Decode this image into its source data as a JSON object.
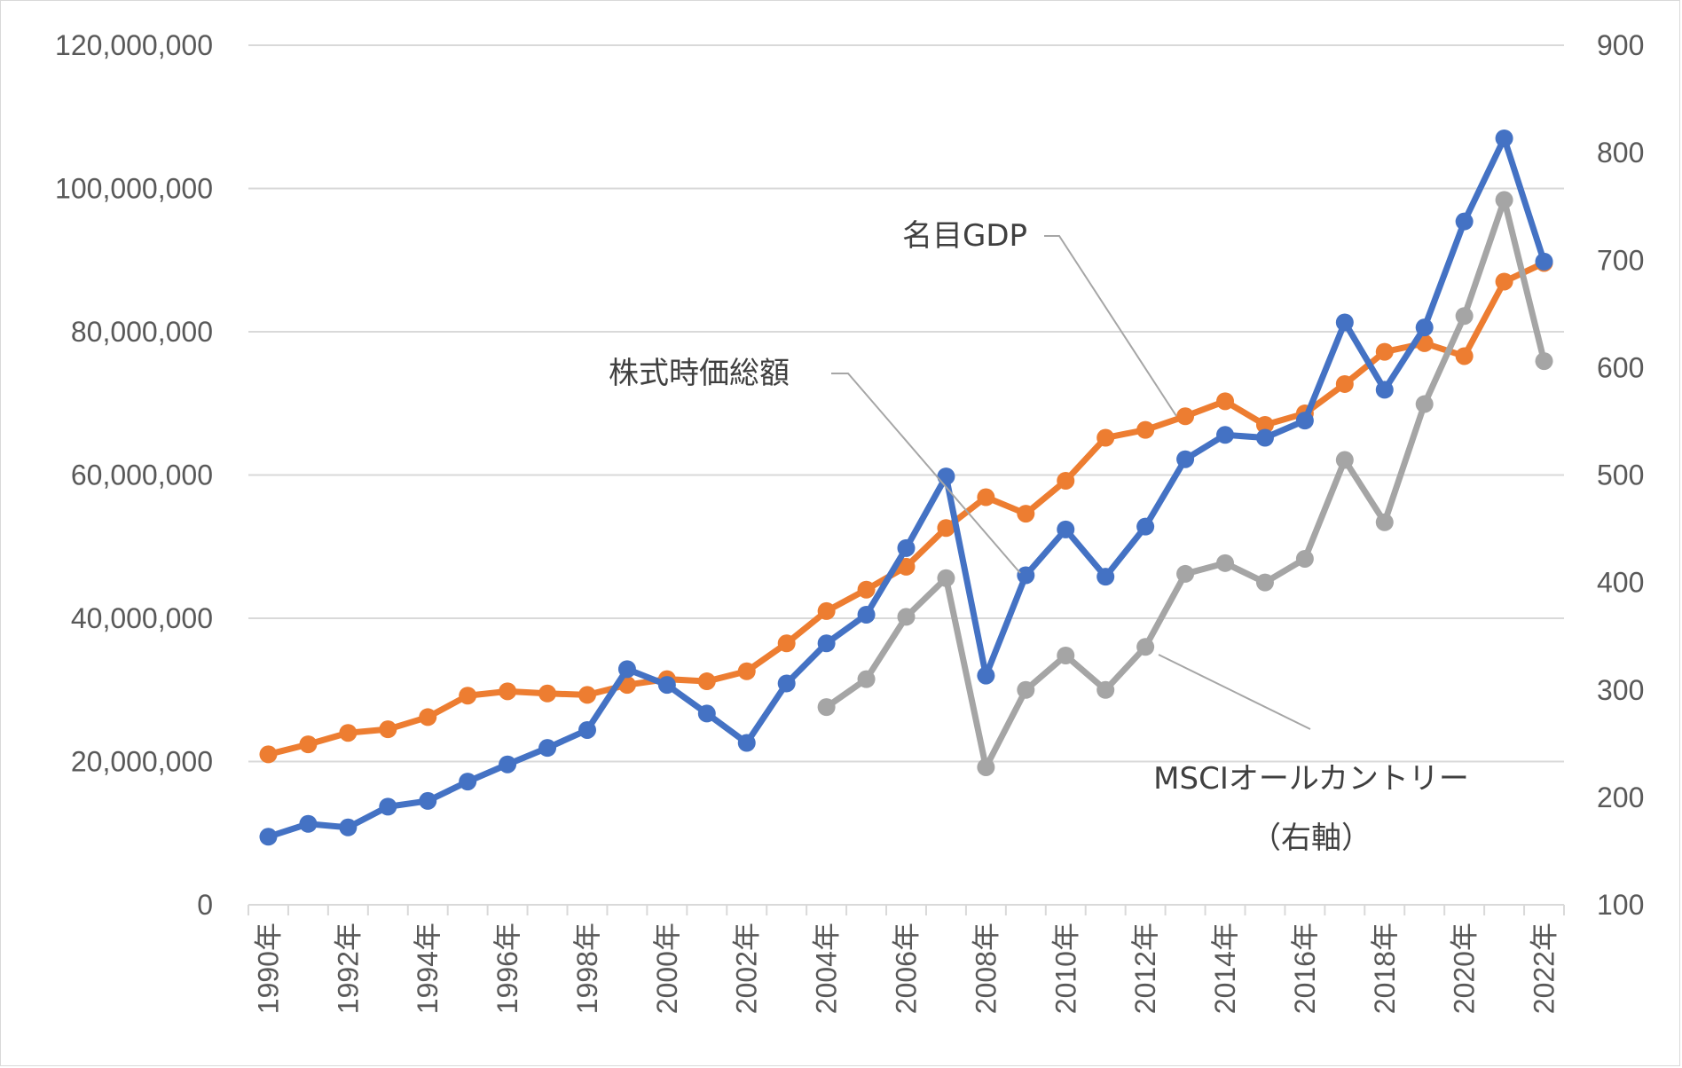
{
  "chart_data": {
    "type": "line",
    "x": [
      "1990年",
      "1991年",
      "1992年",
      "1993年",
      "1994年",
      "1995年",
      "1996年",
      "1997年",
      "1998年",
      "1999年",
      "2000年",
      "2001年",
      "2002年",
      "2003年",
      "2004年",
      "2005年",
      "2006年",
      "2007年",
      "2008年",
      "2009年",
      "2010年",
      "2011年",
      "2012年",
      "2013年",
      "2014年",
      "2015年",
      "2016年",
      "2017年",
      "2018年",
      "2019年",
      "2020年",
      "2021年",
      "2022年"
    ],
    "x_tick_labels": [
      "1990年",
      "1992年",
      "1994年",
      "1996年",
      "1998年",
      "2000年",
      "2002年",
      "2004年",
      "2006年",
      "2008年",
      "2010年",
      "2012年",
      "2014年",
      "2016年",
      "2018年",
      "2020年",
      "2022年"
    ],
    "y_left": {
      "ylim": [
        0,
        120000000
      ],
      "ticks": [
        "0",
        "20,000,000",
        "40,000,000",
        "60,000,000",
        "80,000,000",
        "100,000,000",
        "120,000,000"
      ]
    },
    "y_right": {
      "ylim": [
        100,
        900
      ],
      "ticks": [
        "100",
        "200",
        "300",
        "400",
        "500",
        "600",
        "700",
        "800",
        "900"
      ]
    },
    "grid": true,
    "series": [
      {
        "name": "株式時価総額",
        "axis": "left",
        "color": "#4472c4",
        "values": [
          9500000,
          11300000,
          10800000,
          13700000,
          14500000,
          17200000,
          19600000,
          21900000,
          24400000,
          32900000,
          30700000,
          26700000,
          22600000,
          30900000,
          36500000,
          40500000,
          49800000,
          59800000,
          32000000,
          46000000,
          52400000,
          45800000,
          52800000,
          62200000,
          65600000,
          65200000,
          67600000,
          81300000,
          71900000,
          80600000,
          95400000,
          107000000,
          89800000
        ]
      },
      {
        "name": "名目GDP",
        "axis": "left",
        "color": "#ed7d31",
        "values": [
          21000000,
          22400000,
          24000000,
          24500000,
          26200000,
          29200000,
          29800000,
          29500000,
          29300000,
          30700000,
          31500000,
          31200000,
          32600000,
          36500000,
          41000000,
          44000000,
          47200000,
          52600000,
          56900000,
          54600000,
          59200000,
          65200000,
          66300000,
          68200000,
          70300000,
          67000000,
          68600000,
          72700000,
          77200000,
          78400000,
          76600000,
          87000000,
          89600000
        ]
      },
      {
        "name": "MSCIオールカントリー（右軸）",
        "axis": "right",
        "color": "#a5a5a5",
        "values": [
          null,
          null,
          null,
          null,
          null,
          null,
          null,
          null,
          null,
          null,
          null,
          null,
          null,
          null,
          284,
          310,
          368,
          404,
          228,
          300,
          332,
          300,
          340,
          408,
          418,
          400,
          422,
          514,
          456,
          566,
          648,
          756,
          606
        ]
      }
    ],
    "annotations": {
      "gdp": "名目GDP",
      "market_cap": "株式時価総額",
      "msci_line1": "MSCIオールカントリー",
      "msci_line2": "（右軸）"
    }
  }
}
